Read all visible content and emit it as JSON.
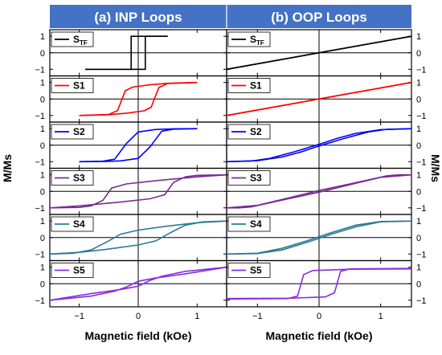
{
  "chart_data": {
    "type": "line",
    "ylabel_left": "M/Ms",
    "ylabel_right": "M/Ms",
    "xlabel": "Magnetic field (kOe)",
    "xlim": [
      -1.5,
      1.5
    ],
    "ylim": [
      -1.4,
      1.4
    ],
    "x_ticks": [
      "−1",
      "0",
      "1"
    ],
    "x_tick_values": [
      -1,
      0,
      1
    ],
    "y_ticks": [
      "1",
      "0",
      "−1"
    ],
    "y_tick_values": [
      1,
      0,
      -1
    ],
    "panels": [
      {
        "title": "(a) INP Loops",
        "rows": [
          {
            "label": "S",
            "sub": "TF",
            "color": "#000000",
            "upper": {
              "x": [
                -0.9,
                -0.12,
                -0.12,
                0.5
              ],
              "y": [
                -1,
                -1,
                1,
                1
              ]
            },
            "lower": {
              "x": [
                -0.9,
                0.12,
                0.12,
                0.5
              ],
              "y": [
                -1,
                -1,
                1,
                1
              ]
            }
          },
          {
            "label": "S1",
            "color": "#ff0000",
            "upper": {
              "x": [
                -1.0,
                -0.5,
                -0.35,
                -0.22,
                -0.1,
                0.2,
                0.5,
                1.0
              ],
              "y": [
                -1,
                -0.94,
                -0.7,
                0.5,
                0.72,
                0.86,
                0.95,
                1
              ]
            },
            "lower": {
              "x": [
                -1.0,
                -0.5,
                -0.2,
                0.1,
                0.22,
                0.35,
                0.5,
                1.0
              ],
              "y": [
                -1,
                -0.95,
                -0.86,
                -0.72,
                -0.5,
                0.7,
                0.94,
                1
              ]
            }
          },
          {
            "label": "S2",
            "color": "#0000ff",
            "upper": {
              "x": [
                -1.0,
                -0.6,
                -0.4,
                -0.2,
                0.0,
                0.3,
                0.6,
                1.0
              ],
              "y": [
                -1,
                -0.97,
                -0.85,
                0.1,
                0.8,
                0.95,
                0.99,
                1
              ]
            },
            "lower": {
              "x": [
                -1.0,
                -0.6,
                -0.3,
                0.0,
                0.2,
                0.4,
                0.6,
                1.0
              ],
              "y": [
                -1,
                -0.99,
                -0.95,
                -0.8,
                -0.1,
                0.85,
                0.97,
                1
              ]
            }
          },
          {
            "label": "S3",
            "color": "#7b2b8f",
            "upper": {
              "x": [
                -1.5,
                -1.0,
                -0.8,
                -0.6,
                -0.45,
                -0.2,
                0.3,
                1.0,
                1.5
              ],
              "y": [
                -1,
                -0.97,
                -0.88,
                -0.55,
                0.2,
                0.45,
                0.65,
                0.88,
                1
              ]
            },
            "lower": {
              "x": [
                -1.5,
                -1.0,
                -0.3,
                0.2,
                0.45,
                0.6,
                0.8,
                1.0,
                1.5
              ],
              "y": [
                -1,
                -0.88,
                -0.65,
                -0.45,
                -0.2,
                0.55,
                0.88,
                0.97,
                1
              ]
            }
          },
          {
            "label": "S4",
            "color": "#2b7a8f",
            "upper": {
              "x": [
                -1.5,
                -1.1,
                -0.8,
                -0.55,
                -0.3,
                0.0,
                0.5,
                1.0,
                1.5
              ],
              "y": [
                -1,
                -0.95,
                -0.75,
                -0.3,
                0.2,
                0.45,
                0.7,
                0.9,
                1
              ]
            },
            "lower": {
              "x": [
                -1.5,
                -1.0,
                -0.5,
                0.0,
                0.3,
                0.55,
                0.8,
                1.1,
                1.5
              ],
              "y": [
                -1,
                -0.9,
                -0.7,
                -0.45,
                -0.2,
                0.3,
                0.75,
                0.95,
                1
              ]
            }
          },
          {
            "label": "S5",
            "color": "#8a2be2",
            "upper": {
              "x": [
                -1.5,
                -0.8,
                -0.4,
                -0.2,
                0.0,
                0.3,
                0.8,
                1.5
              ],
              "y": [
                -1,
                -0.75,
                -0.45,
                -0.2,
                0.15,
                0.35,
                0.6,
                1
              ]
            },
            "lower": {
              "x": [
                -1.5,
                -0.8,
                -0.3,
                0.0,
                0.2,
                0.4,
                0.8,
                1.5
              ],
              "y": [
                -1,
                -0.6,
                -0.35,
                -0.15,
                0.2,
                0.45,
                0.75,
                1
              ]
            }
          }
        ]
      },
      {
        "title": "(b) OOP Loops",
        "rows": [
          {
            "label": "S",
            "sub": "TF",
            "color": "#000000",
            "upper": {
              "x": [
                -1.5,
                1.5
              ],
              "y": [
                -1,
                1
              ]
            },
            "lower": {
              "x": [
                -1.5,
                1.5
              ],
              "y": [
                -1,
                1
              ]
            }
          },
          {
            "label": "S1",
            "color": "#ff0000",
            "upper": {
              "x": [
                -1.5,
                1.5
              ],
              "y": [
                -1,
                1
              ]
            },
            "lower": {
              "x": [
                -1.5,
                1.5
              ],
              "y": [
                -1,
                1
              ]
            }
          },
          {
            "label": "S2",
            "color": "#0000ff",
            "upper": {
              "x": [
                -1.5,
                -1.0,
                -0.6,
                -0.3,
                0.0,
                0.4,
                0.8,
                1.1,
                1.5
              ],
              "y": [
                -1,
                -0.94,
                -0.72,
                -0.42,
                -0.05,
                0.4,
                0.8,
                0.96,
                1
              ]
            },
            "lower": {
              "x": [
                -1.5,
                -1.1,
                -0.8,
                -0.4,
                0.0,
                0.3,
                0.6,
                1.0,
                1.5
              ],
              "y": [
                -1,
                -0.96,
                -0.8,
                -0.4,
                0.05,
                0.42,
                0.72,
                0.94,
                1
              ]
            }
          },
          {
            "label": "S3",
            "color": "#7b2b8f",
            "upper": {
              "x": [
                -1.5,
                -1.3,
                -1.1,
                -0.5,
                0.0,
                0.5,
                1.0,
                1.5
              ],
              "y": [
                -1,
                -1,
                -0.94,
                -0.45,
                -0.05,
                0.4,
                0.85,
                1
              ]
            },
            "lower": {
              "x": [
                -1.5,
                -1.0,
                -0.5,
                0.0,
                0.5,
                1.1,
                1.3,
                1.5
              ],
              "y": [
                -1,
                -0.85,
                -0.4,
                0.05,
                0.45,
                0.94,
                1,
                1
              ]
            }
          },
          {
            "label": "S4",
            "color": "#2b7a8f",
            "upper": {
              "x": [
                -1.5,
                -1.0,
                -0.6,
                -0.2,
                0.2,
                0.6,
                1.0,
                1.5
              ],
              "y": [
                -1,
                -0.97,
                -0.75,
                -0.3,
                0.2,
                0.65,
                0.95,
                1
              ]
            },
            "lower": {
              "x": [
                -1.5,
                -1.0,
                -0.6,
                -0.2,
                0.2,
                0.6,
                1.0,
                1.5
              ],
              "y": [
                -1,
                -0.95,
                -0.65,
                -0.2,
                0.3,
                0.75,
                0.97,
                1
              ]
            }
          },
          {
            "label": "S5",
            "color": "#8a2be2",
            "upper": {
              "x": [
                -1.5,
                -0.5,
                -0.35,
                -0.3,
                -0.25,
                -0.1,
                0.5,
                1.5
              ],
              "y": [
                -0.93,
                -0.9,
                -0.75,
                -0.1,
                0.55,
                0.8,
                0.88,
                0.9
              ]
            },
            "lower": {
              "x": [
                -1.5,
                -0.5,
                0.1,
                0.25,
                0.3,
                0.35,
                0.5,
                1.5
              ],
              "y": [
                -0.9,
                -0.88,
                -0.8,
                -0.55,
                0.1,
                0.75,
                0.9,
                0.93
              ]
            }
          }
        ]
      }
    ]
  }
}
